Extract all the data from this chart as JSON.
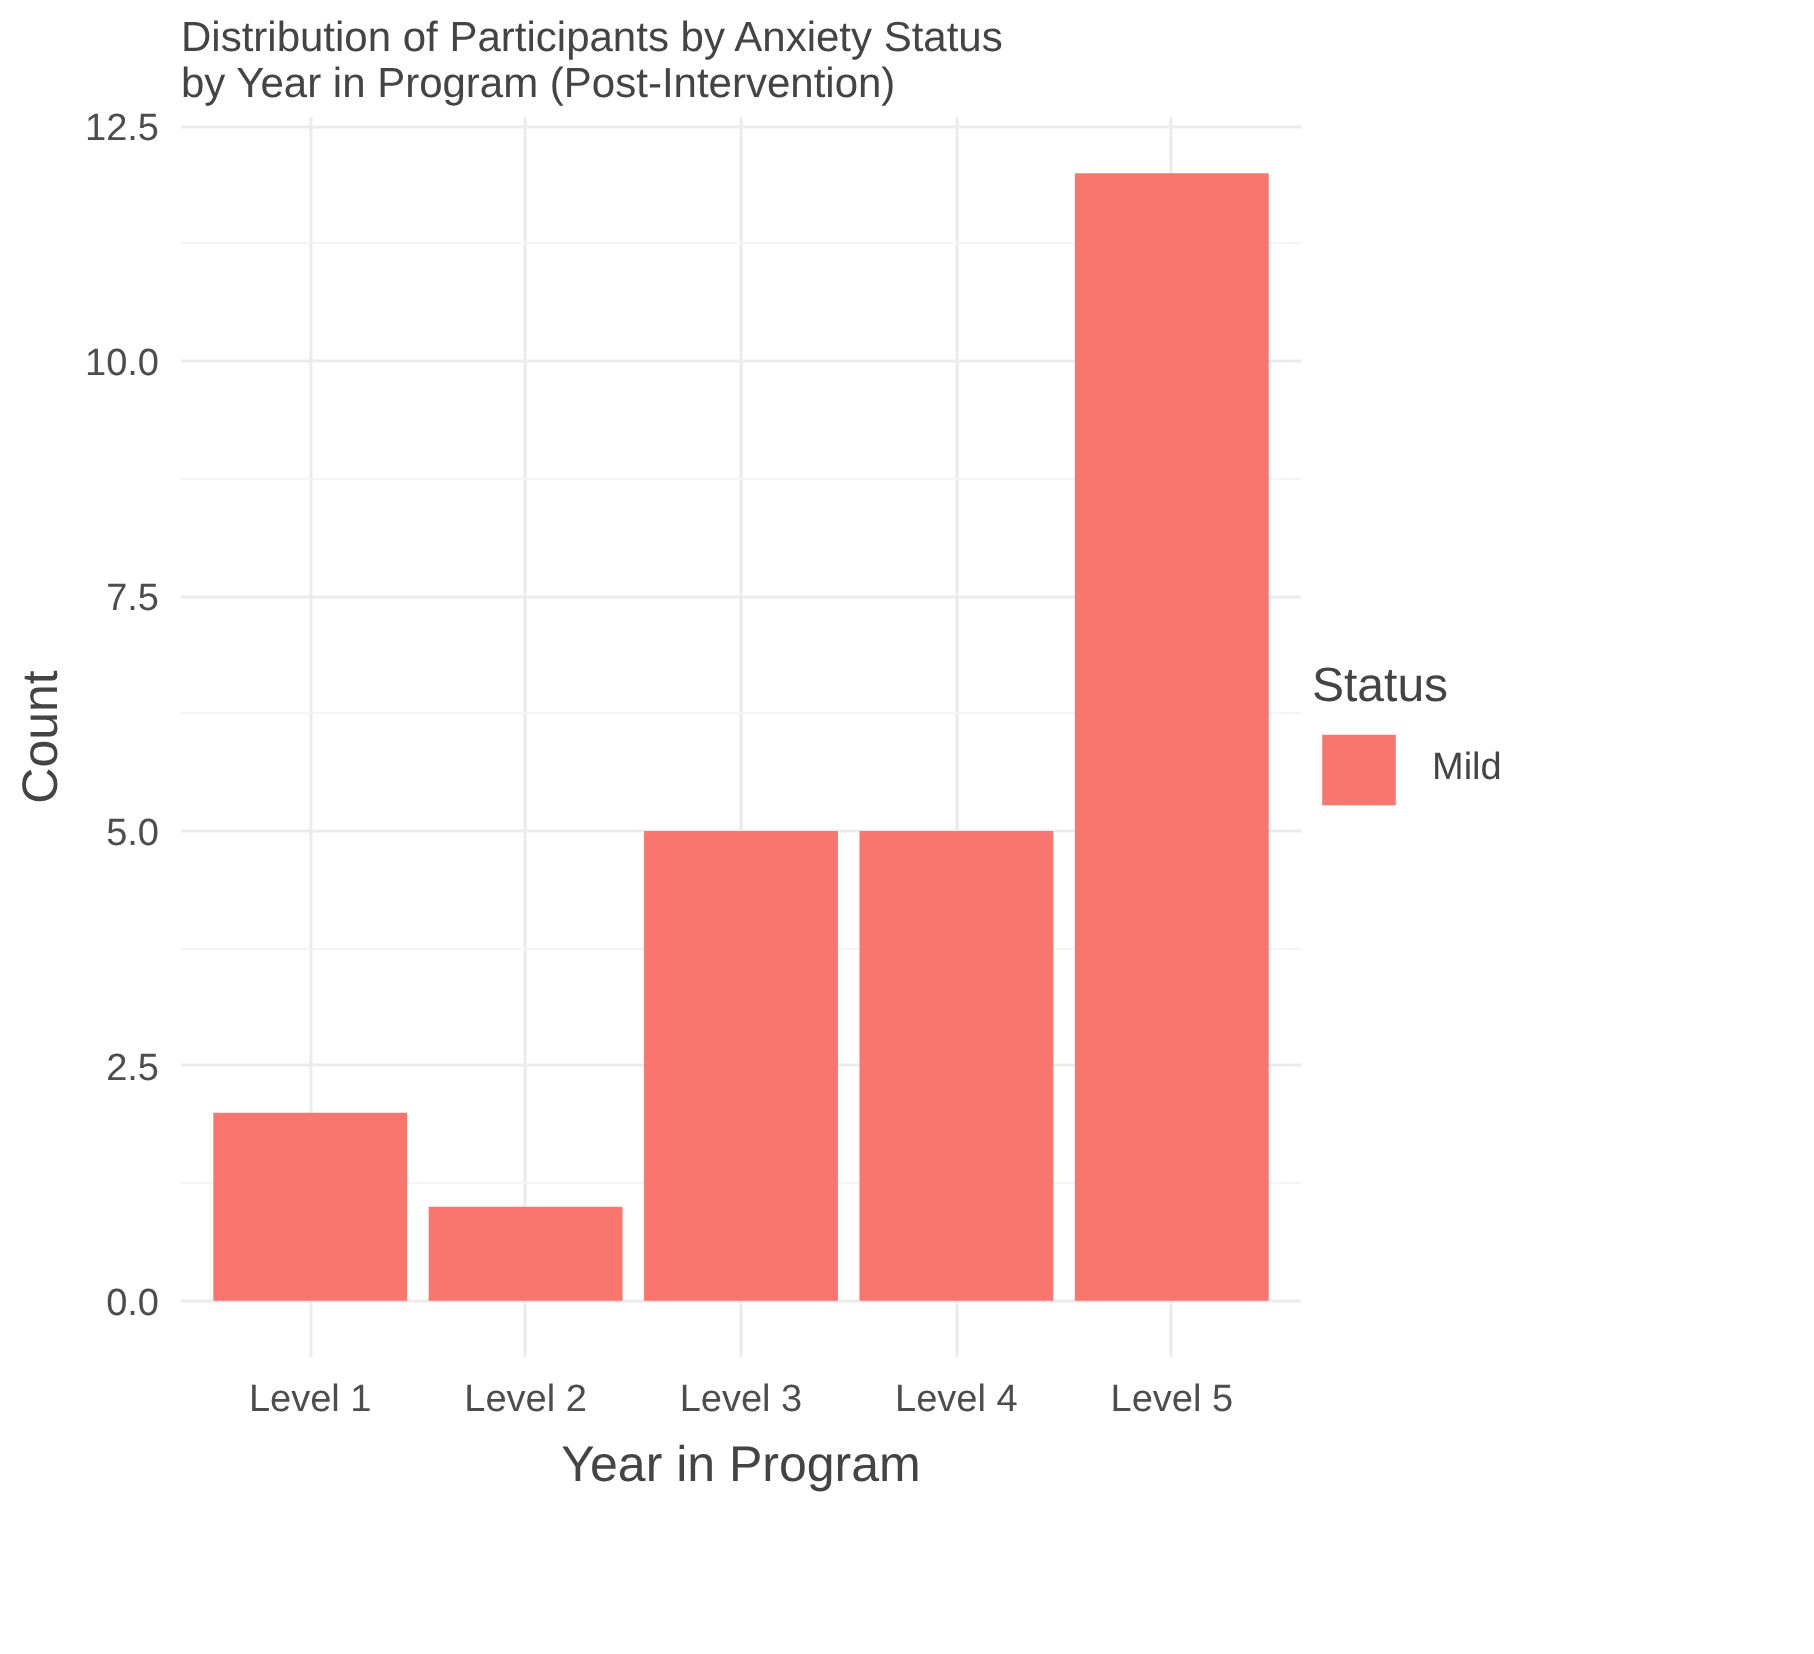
{
  "chart_data": {
    "type": "bar",
    "title": "Distribution of Participants by Anxiety Status\n by Year in Program (Post-Intervention)",
    "xlabel": "Year in Program",
    "ylabel": "Count",
    "legend_title": "Status",
    "categories": [
      "Level 1",
      "Level 2",
      "Level 3",
      "Level 4",
      "Level 5"
    ],
    "series": [
      {
        "name": "Mild",
        "color": "#f8766d",
        "values": [
          2,
          1,
          5,
          5,
          12
        ]
      }
    ],
    "ylim": [
      -0.6,
      12.6
    ],
    "yticks": [
      {
        "value": 0,
        "label": "0.0"
      },
      {
        "value": 2.5,
        "label": "2.5"
      },
      {
        "value": 5,
        "label": "5.0"
      },
      {
        "value": 7.5,
        "label": "7.5"
      },
      {
        "value": 10,
        "label": "10.0"
      },
      {
        "value": 12.5,
        "label": "12.5"
      }
    ],
    "grid": true,
    "legend": "right"
  }
}
